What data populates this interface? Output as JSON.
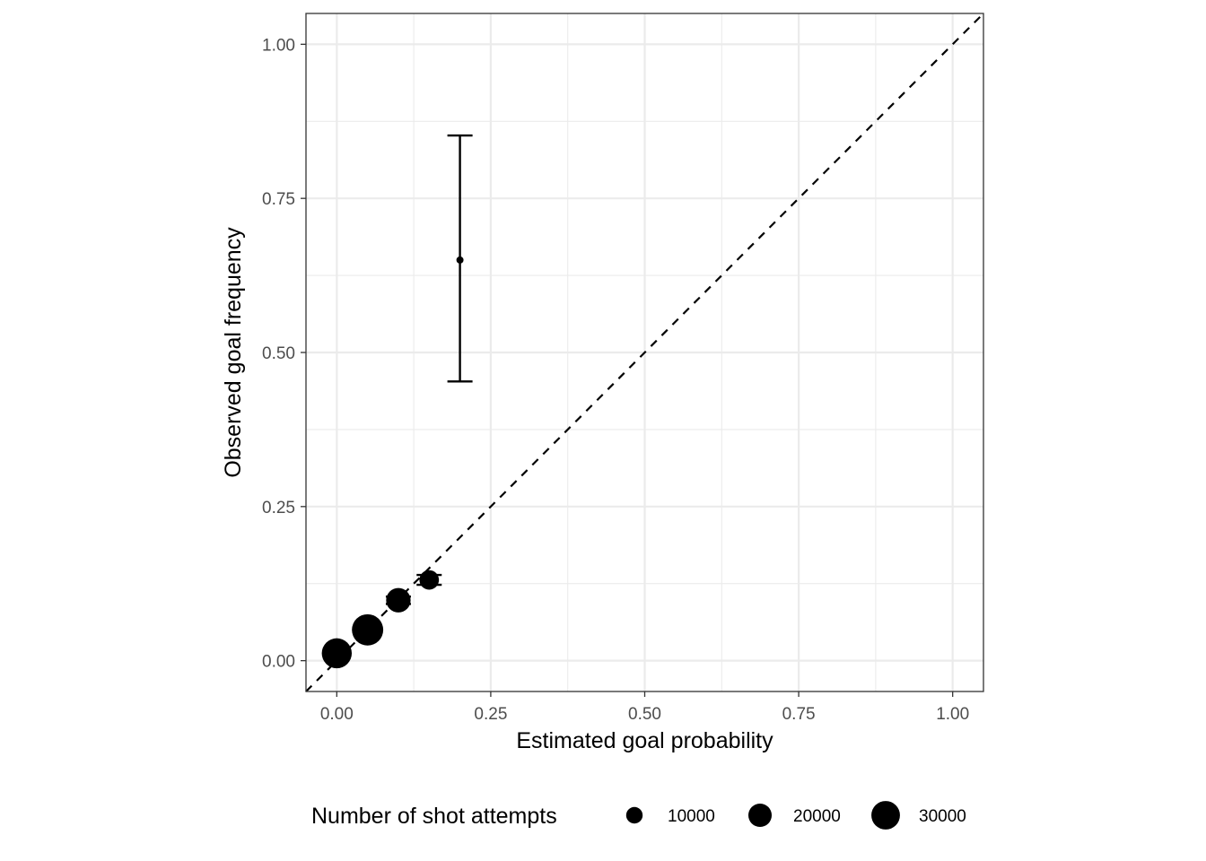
{
  "chart_data": {
    "type": "scatter",
    "title": "",
    "xlabel": "Estimated goal probability",
    "ylabel": "Observed goal frequency",
    "xlim": [
      -0.05,
      1.05
    ],
    "ylim": [
      -0.05,
      1.05
    ],
    "x_ticks": [
      "0.00",
      "0.25",
      "0.50",
      "0.75",
      "1.00"
    ],
    "y_ticks": [
      "0.00",
      "0.25",
      "0.50",
      "0.75",
      "1.00"
    ],
    "grid": true,
    "reference_line": {
      "slope": 1,
      "intercept": 0,
      "style": "dashed"
    },
    "points": [
      {
        "x": 0.0,
        "y": 0.012,
        "ymin": 0.01,
        "ymax": 0.014,
        "n": 33000
      },
      {
        "x": 0.05,
        "y": 0.05,
        "ymin": 0.047,
        "ymax": 0.053,
        "n": 36000
      },
      {
        "x": 0.1,
        "y": 0.098,
        "ymin": 0.092,
        "ymax": 0.104,
        "n": 22000
      },
      {
        "x": 0.15,
        "y": 0.131,
        "ymin": 0.123,
        "ymax": 0.139,
        "n": 14000
      },
      {
        "x": 0.2,
        "y": 0.65,
        "ymin": 0.453,
        "ymax": 0.852,
        "n": 20
      }
    ],
    "legend": {
      "title": "Number of shot attempts",
      "position": "bottom",
      "entries": [
        {
          "label": "10000",
          "n": 10000
        },
        {
          "label": "20000",
          "n": 20000
        },
        {
          "label": "30000",
          "n": 30000
        }
      ]
    },
    "colors": {
      "points": "#000000",
      "grid": "#ebebeb",
      "panel_border": "#333333"
    }
  }
}
